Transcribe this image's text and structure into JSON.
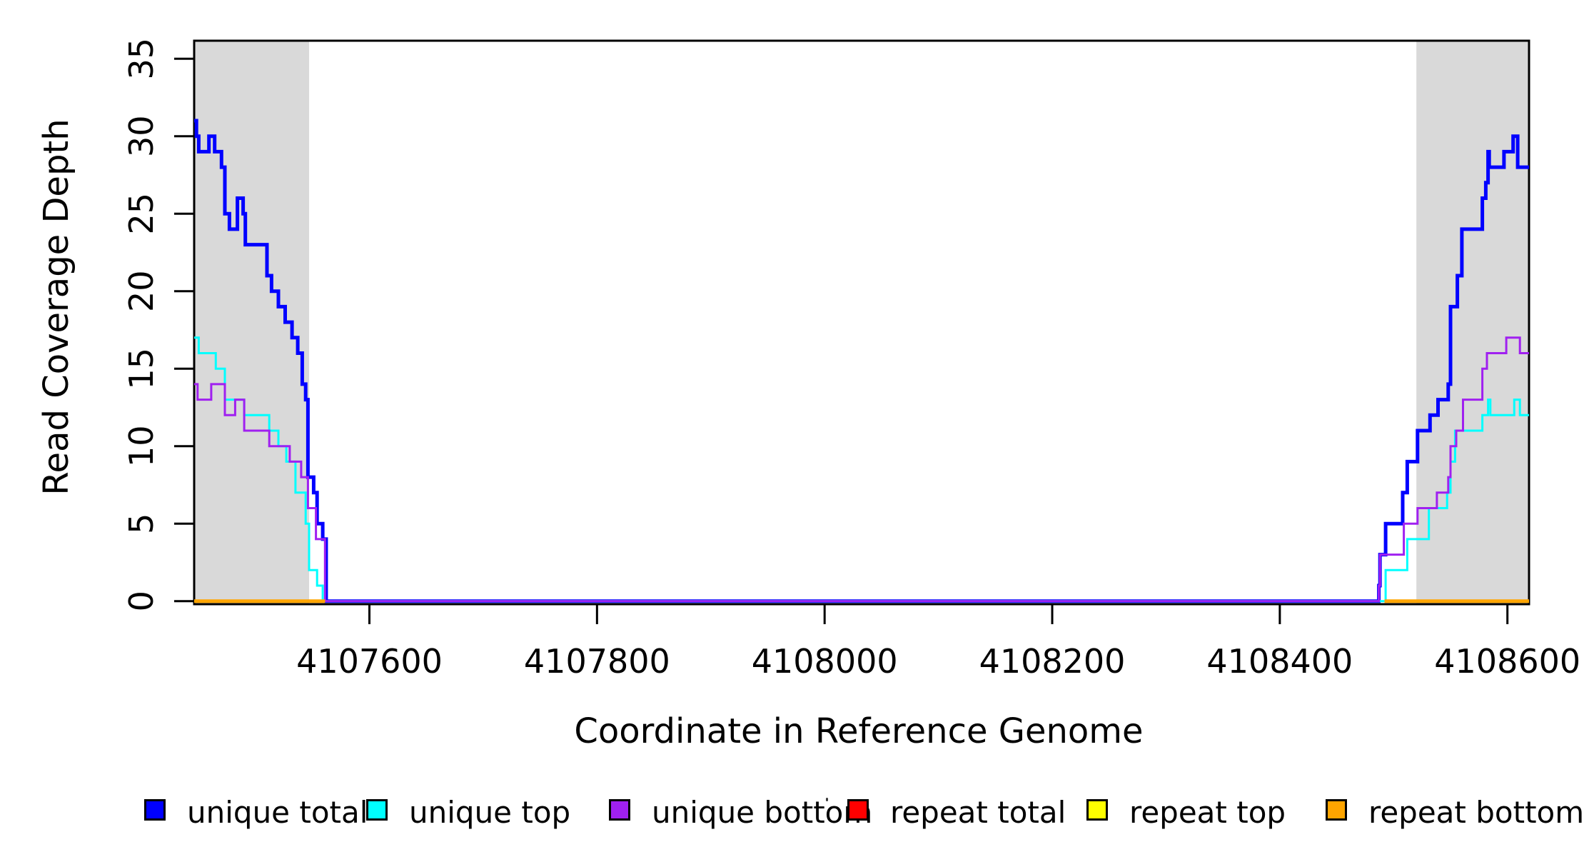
{
  "chart_data": {
    "type": "line",
    "step": true,
    "title": "",
    "xlabel": "Coordinate in Reference Genome",
    "ylabel": "Read Coverage Depth",
    "xlim": [
      4107446,
      4108619
    ],
    "ylim": [
      0,
      35
    ],
    "x_ticks": [
      4107600,
      4107800,
      4108000,
      4108200,
      4108400,
      4108600
    ],
    "y_ticks": [
      0,
      5,
      10,
      15,
      20,
      25,
      30,
      35
    ],
    "grid": false,
    "legend_position": "bottom-horizontal",
    "shaded_regions": [
      {
        "name": "left-repeat-region",
        "x0": 4107446,
        "x1": 4107547,
        "color": "#D9D9D9"
      },
      {
        "name": "right-repeat-region",
        "x0": 4108520,
        "x1": 4108619,
        "color": "#D9D9D9"
      }
    ],
    "series": [
      {
        "name": "unique total",
        "color": "#0000FF",
        "line_width": 5,
        "segments": [
          {
            "xend": 4108619,
            "points": [
              [
                4107446,
                31
              ],
              [
                4107448,
                30
              ],
              [
                4107450,
                29
              ],
              [
                4107459,
                30
              ],
              [
                4107464,
                29
              ],
              [
                4107470,
                28
              ],
              [
                4107473,
                25
              ],
              [
                4107477,
                24
              ],
              [
                4107484,
                26
              ],
              [
                4107489,
                25
              ],
              [
                4107491,
                23
              ],
              [
                4107510,
                21
              ],
              [
                4107514,
                20
              ],
              [
                4107520,
                19
              ],
              [
                4107526,
                18
              ],
              [
                4107532,
                17
              ],
              [
                4107537,
                16
              ],
              [
                4107541,
                14
              ],
              [
                4107544,
                13
              ],
              [
                4107546,
                8
              ],
              [
                4107551,
                7
              ],
              [
                4107554,
                5
              ],
              [
                4107559,
                4
              ],
              [
                4107562,
                0
              ],
              [
                4108487,
                1
              ],
              [
                4108488,
                3
              ],
              [
                4108493,
                5
              ],
              [
                4108508,
                7
              ],
              [
                4108512,
                9
              ],
              [
                4108521,
                11
              ],
              [
                4108532,
                12
              ],
              [
                4108539,
                13
              ],
              [
                4108548,
                14
              ],
              [
                4108550,
                19
              ],
              [
                4108556,
                21
              ],
              [
                4108560,
                24
              ],
              [
                4108578,
                26
              ],
              [
                4108581,
                27
              ],
              [
                4108583,
                29
              ],
              [
                4108584,
                28
              ],
              [
                4108597,
                29
              ],
              [
                4108605,
                30
              ],
              [
                4108609,
                28
              ]
            ]
          }
        ]
      },
      {
        "name": "unique top",
        "color": "#00FFFF",
        "line_width": 3,
        "segments": [
          {
            "xend": 4108619,
            "points": [
              [
                4107446,
                17
              ],
              [
                4107450,
                16
              ],
              [
                4107465,
                15
              ],
              [
                4107473,
                13
              ],
              [
                4107490,
                12
              ],
              [
                4107512,
                11
              ],
              [
                4107520,
                10
              ],
              [
                4107527,
                9
              ],
              [
                4107535,
                7
              ],
              [
                4107544,
                5
              ],
              [
                4107547,
                2
              ],
              [
                4107554,
                1
              ],
              [
                4107559,
                0
              ],
              [
                4108493,
                2
              ],
              [
                4108512,
                4
              ],
              [
                4108531,
                6
              ],
              [
                4108547,
                7
              ],
              [
                4108550,
                9
              ],
              [
                4108554,
                11
              ],
              [
                4108578,
                12
              ],
              [
                4108583,
                13
              ],
              [
                4108585,
                12
              ],
              [
                4108606,
                13
              ],
              [
                4108611,
                12
              ]
            ]
          }
        ]
      },
      {
        "name": "unique bottom",
        "color": "#A020F0",
        "line_width": 3,
        "segments": [
          {
            "xend": 4108619,
            "points": [
              [
                4107446,
                14
              ],
              [
                4107449,
                13
              ],
              [
                4107461,
                14
              ],
              [
                4107473,
                12
              ],
              [
                4107482,
                13
              ],
              [
                4107490,
                11
              ],
              [
                4107512,
                10
              ],
              [
                4107530,
                9
              ],
              [
                4107540,
                8
              ],
              [
                4107546,
                6
              ],
              [
                4107553,
                4
              ],
              [
                4107561,
                0
              ],
              [
                4108487,
                1
              ],
              [
                4108488,
                3
              ],
              [
                4108509,
                5
              ],
              [
                4108521,
                6
              ],
              [
                4108538,
                7
              ],
              [
                4108548,
                8
              ],
              [
                4108550,
                10
              ],
              [
                4108555,
                11
              ],
              [
                4108561,
                13
              ],
              [
                4108578,
                15
              ],
              [
                4108582,
                16
              ],
              [
                4108599,
                17
              ],
              [
                4108611,
                16
              ]
            ]
          }
        ]
      },
      {
        "name": "repeat total",
        "color": "#FF0000",
        "line_width": 3,
        "segments": [
          {
            "xend": 4107561,
            "points": [
              [
                4107446,
                0
              ]
            ]
          },
          {
            "xend": 4108619,
            "points": [
              [
                4108492,
                0
              ]
            ]
          }
        ]
      },
      {
        "name": "repeat top",
        "color": "#FFFF00",
        "line_width": 3,
        "segments": [
          {
            "xend": 4107561,
            "points": [
              [
                4107446,
                0
              ]
            ]
          },
          {
            "xend": 4108619,
            "points": [
              [
                4108492,
                0
              ]
            ]
          }
        ]
      },
      {
        "name": "repeat bottom",
        "color": "#FFA500",
        "line_width": 5,
        "segments": [
          {
            "xend": 4107561,
            "points": [
              [
                4107446,
                0
              ]
            ]
          },
          {
            "xend": 4108619,
            "points": [
              [
                4108492,
                0
              ]
            ]
          }
        ]
      }
    ]
  },
  "legend": {
    "items": [
      {
        "label": "unique total",
        "color": "#0000FF"
      },
      {
        "label": "unique top",
        "color": "#00FFFF"
      },
      {
        "label": "unique bottom",
        "color": "#A020F0"
      },
      {
        "label": "repeat total",
        "color": "#FF0000"
      },
      {
        "label": "repeat top",
        "color": "#FFFF00"
      },
      {
        "label": "repeat bottom",
        "color": "#FFA500"
      }
    ]
  },
  "decorations": {
    "stray_dot_color": "#3a3a3a"
  }
}
